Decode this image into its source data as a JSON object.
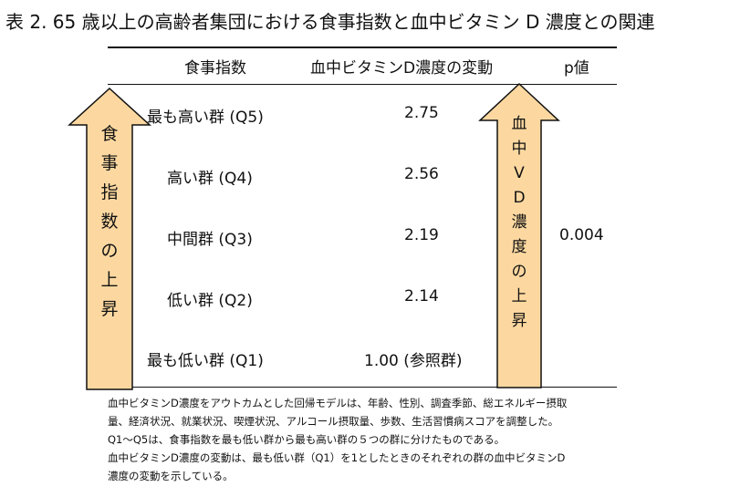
{
  "title": "表 2. 65 歳以上の高齢者集団における食事指数と血中ビタミン D 濃度との関連",
  "table": {
    "headers": [
      "食事指数",
      "血中ビタミンD濃度の変動",
      "p値"
    ],
    "rows": [
      {
        "label": "最も高い群 (Q5)",
        "value": "2.75"
      },
      {
        "label": "高い群 (Q4)",
        "value": "2.56"
      },
      {
        "label": "中間群 (Q3)",
        "value": "2.19"
      },
      {
        "label": "低い群 (Q2)",
        "value": "2.14"
      },
      {
        "label": "最も低い群 (Q1)",
        "value": "1.00 (参照群)"
      }
    ],
    "p_value": "0.004"
  },
  "left_arrow": {
    "chars": [
      "食",
      "事",
      "指",
      "数",
      "の",
      "上",
      "昇"
    ]
  },
  "right_arrow": {
    "chars": [
      "血",
      "中",
      "V",
      "D",
      "濃",
      "度",
      "の",
      "上",
      "昇"
    ]
  },
  "notes": [
    "血中ビタミンD濃度をアウトカムとした回帰モデルは、年齢、性別、調査季節、総エネルギー摂取",
    "量、経済状況、就業状況、喫煙状況、アルコール摂取量、歩数、生活習慣病スコアを調整した。",
    "Q1～Q5は、食事指数を最も低い群から最も高い群の５つの群に分けたものである。",
    "血中ビタミンD濃度の変動は、最も低い群（Q1）を1としたときのそれぞれの群の血中ビタミンD",
    "濃度の変動を示している。"
  ],
  "colors": {
    "arrow_fill": "#fcd8a0",
    "arrow_stroke": "#111111"
  }
}
